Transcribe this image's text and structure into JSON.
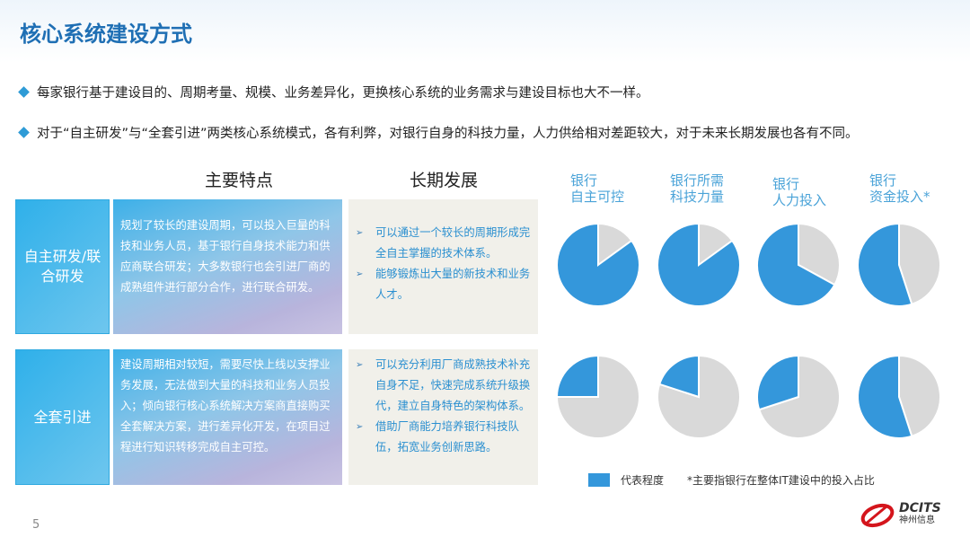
{
  "title": "核心系统建设方式",
  "bullets": [
    "每家银行基于建设目的、周期考量、规模、业务差异化，更换核心系统的业务需求与建设目标也大不一样。",
    "对于“自主研发”与“全套引进”两类核心系统模式，各有利弊，对银行自身的科技力量，人力供给相对差距较大，对于未来长期发展也各有不同。"
  ],
  "table": {
    "headers": [
      "主要特点",
      "长期发展"
    ],
    "rows": [
      {
        "label": "自主研发/联合研发",
        "features": "规划了较长的建设周期，可以投入巨量的科技和业务人员，基于银行自身技术能力和供应商联合研发；大多数银行也会引进厂商的成熟组件进行部分合作，进行联合研发。",
        "development": [
          "可以通过一个较长的周期形成完全自主掌握的技术体系。",
          "能够锻炼出大量的新技术和业务人才。"
        ]
      },
      {
        "label": "全套引进",
        "features": "建设周期相对较短，需要尽快上线以支撑业务发展，无法做到大量的科技和业务人员投入；倾向银行核心系统解决方案商直接购买全套解决方案，进行差异化开发，在项目过程进行知识转移完成自主可控。",
        "development": [
          "可以充分利用厂商成熟技术补充自身不足，快速完成系统升级换代，建立自身特色的架构体系。",
          "借助厂商能力培养银行科技队伍，拓宽业务创新思路。"
        ]
      }
    ]
  },
  "chart_data": {
    "type": "pie",
    "columns": [
      [
        "银行",
        "自主可控"
      ],
      [
        "银行所需",
        "科技力量"
      ],
      [
        "银行",
        "人力投入"
      ],
      [
        "银行",
        "资金投入*"
      ]
    ],
    "rows": [
      {
        "row_label": "自主研发/联合研发",
        "blue_fraction": [
          0.85,
          0.85,
          0.67,
          0.55
        ]
      },
      {
        "row_label": "全套引进",
        "blue_fraction": [
          0.25,
          0.2,
          0.3,
          0.55
        ]
      }
    ],
    "legend": "代表程度",
    "note": "*主要指银行在整体IT建设中的投入占比",
    "colors": {
      "highlight": "#3497db",
      "rest": "#d9d9d9"
    }
  },
  "page_number": "5",
  "logo": {
    "en": "DCITS",
    "cn": "神州信息"
  }
}
